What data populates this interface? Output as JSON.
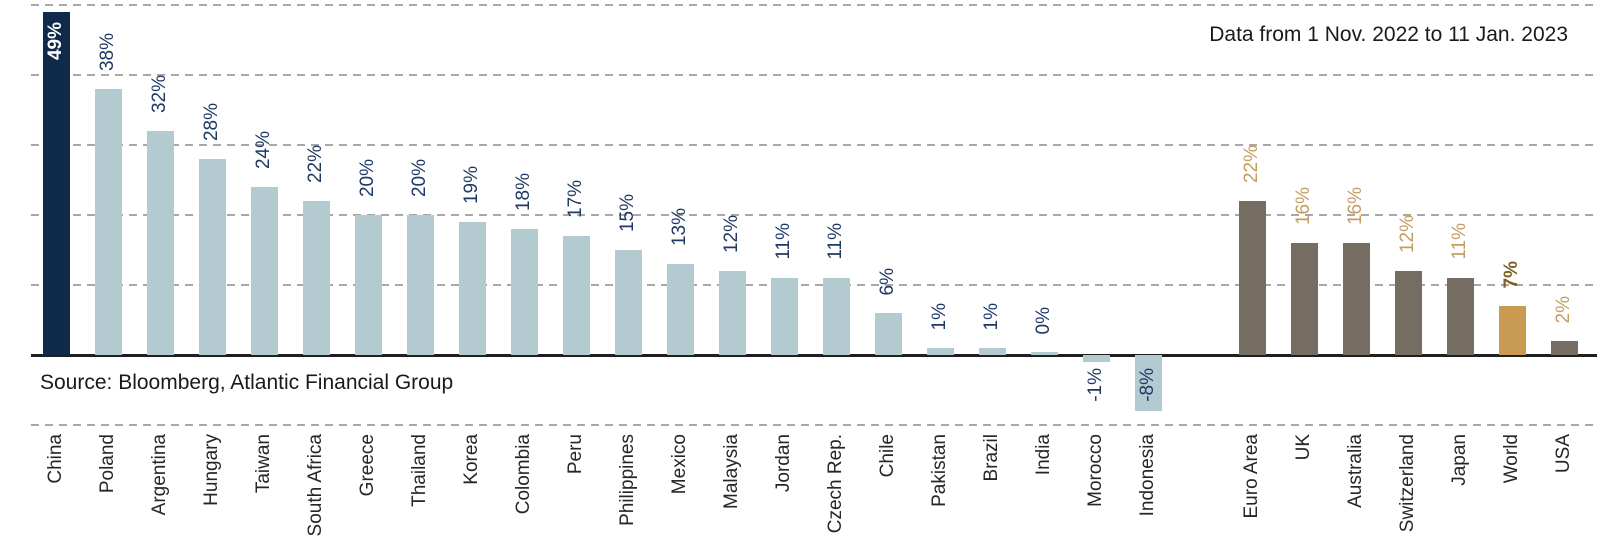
{
  "annotations": {
    "date_note": "Data from 1 Nov. 2022 to 11 Jan. 2023",
    "source": "Source: Bloomberg, Atlantic Financial Group"
  },
  "colors": {
    "china_bar": "#0f2a4b",
    "china_label": "#ffffff",
    "em_bar": "#b2cad0",
    "em_label": "#1f3864",
    "dm_bar": "#756c62",
    "dm_label": "#c49c61",
    "world_bar": "#c89a52",
    "world_label": "#7d6024",
    "gridline": "#a8a8a8",
    "axis": "#1f1f1f",
    "category_label": "#262626"
  },
  "chart_data": {
    "type": "bar",
    "title": "",
    "note": "Data from 1 Nov. 2022 to 11 Jan. 2023",
    "source": "Source: Bloomberg, Atlantic Financial Group",
    "ylim": [
      -10,
      50
    ],
    "gridline_step": 10,
    "grid": "horizontal-dashed",
    "legend_position": "none",
    "categories": [
      "China",
      "Poland",
      "Argentina",
      "Hungary",
      "Taiwan",
      "South Africa",
      "Greece",
      "Thailand",
      "Korea",
      "Colombia",
      "Peru",
      "Philippines",
      "Mexico",
      "Malaysia",
      "Jordan",
      "Czech Rep.",
      "Chile",
      "Pakistan",
      "Brazil",
      "India",
      "Morocco",
      "Indonesia",
      "Euro Area",
      "UK",
      "Australia",
      "Switzerland",
      "Japan",
      "World",
      "USA"
    ],
    "values": [
      49,
      38,
      32,
      28,
      24,
      22,
      20,
      20,
      19,
      18,
      17,
      15,
      13,
      12,
      11,
      11,
      6,
      1,
      1,
      0,
      -1,
      -8,
      22,
      16,
      16,
      12,
      11,
      7,
      2
    ],
    "bars": [
      {
        "label": "China",
        "value": 49,
        "display": "49%",
        "group": "china"
      },
      {
        "label": "Poland",
        "value": 38,
        "display": "38%",
        "group": "em"
      },
      {
        "label": "Argentina",
        "value": 32,
        "display": "32%",
        "group": "em"
      },
      {
        "label": "Hungary",
        "value": 28,
        "display": "28%",
        "group": "em"
      },
      {
        "label": "Taiwan",
        "value": 24,
        "display": "24%",
        "group": "em"
      },
      {
        "label": "South Africa",
        "value": 22,
        "display": "22%",
        "group": "em"
      },
      {
        "label": "Greece",
        "value": 20,
        "display": "20%",
        "group": "em"
      },
      {
        "label": "Thailand",
        "value": 20,
        "display": "20%",
        "group": "em"
      },
      {
        "label": "Korea",
        "value": 19,
        "display": "19%",
        "group": "em"
      },
      {
        "label": "Colombia",
        "value": 18,
        "display": "18%",
        "group": "em"
      },
      {
        "label": "Peru",
        "value": 17,
        "display": "17%",
        "group": "em"
      },
      {
        "label": "Philippines",
        "value": 15,
        "display": "15%",
        "group": "em"
      },
      {
        "label": "Mexico",
        "value": 13,
        "display": "13%",
        "group": "em"
      },
      {
        "label": "Malaysia",
        "value": 12,
        "display": "12%",
        "group": "em"
      },
      {
        "label": "Jordan",
        "value": 11,
        "display": "11%",
        "group": "em"
      },
      {
        "label": "Czech Rep.",
        "value": 11,
        "display": "11%",
        "group": "em"
      },
      {
        "label": "Chile",
        "value": 6,
        "display": "6%",
        "group": "em"
      },
      {
        "label": "Pakistan",
        "value": 1,
        "display": "1%",
        "group": "em"
      },
      {
        "label": "Brazil",
        "value": 1,
        "display": "1%",
        "group": "em"
      },
      {
        "label": "India",
        "value": 0,
        "display": "0%",
        "group": "em"
      },
      {
        "label": "Morocco",
        "value": -1,
        "display": "-1%",
        "group": "em"
      },
      {
        "label": "Indonesia",
        "value": -8,
        "display": "-8%",
        "group": "em"
      },
      {
        "spacer": true
      },
      {
        "label": "Euro Area",
        "value": 22,
        "display": "22%",
        "group": "dm"
      },
      {
        "label": "UK",
        "value": 16,
        "display": "16%",
        "group": "dm"
      },
      {
        "label": "Australia",
        "value": 16,
        "display": "16%",
        "group": "dm"
      },
      {
        "label": "Switzerland",
        "value": 12,
        "display": "12%",
        "group": "dm"
      },
      {
        "label": "Japan",
        "value": 11,
        "display": "11%",
        "group": "dm"
      },
      {
        "label": "World",
        "value": 7,
        "display": "7%",
        "group": "world"
      },
      {
        "label": "USA",
        "value": 2,
        "display": "2%",
        "group": "dm"
      }
    ]
  }
}
